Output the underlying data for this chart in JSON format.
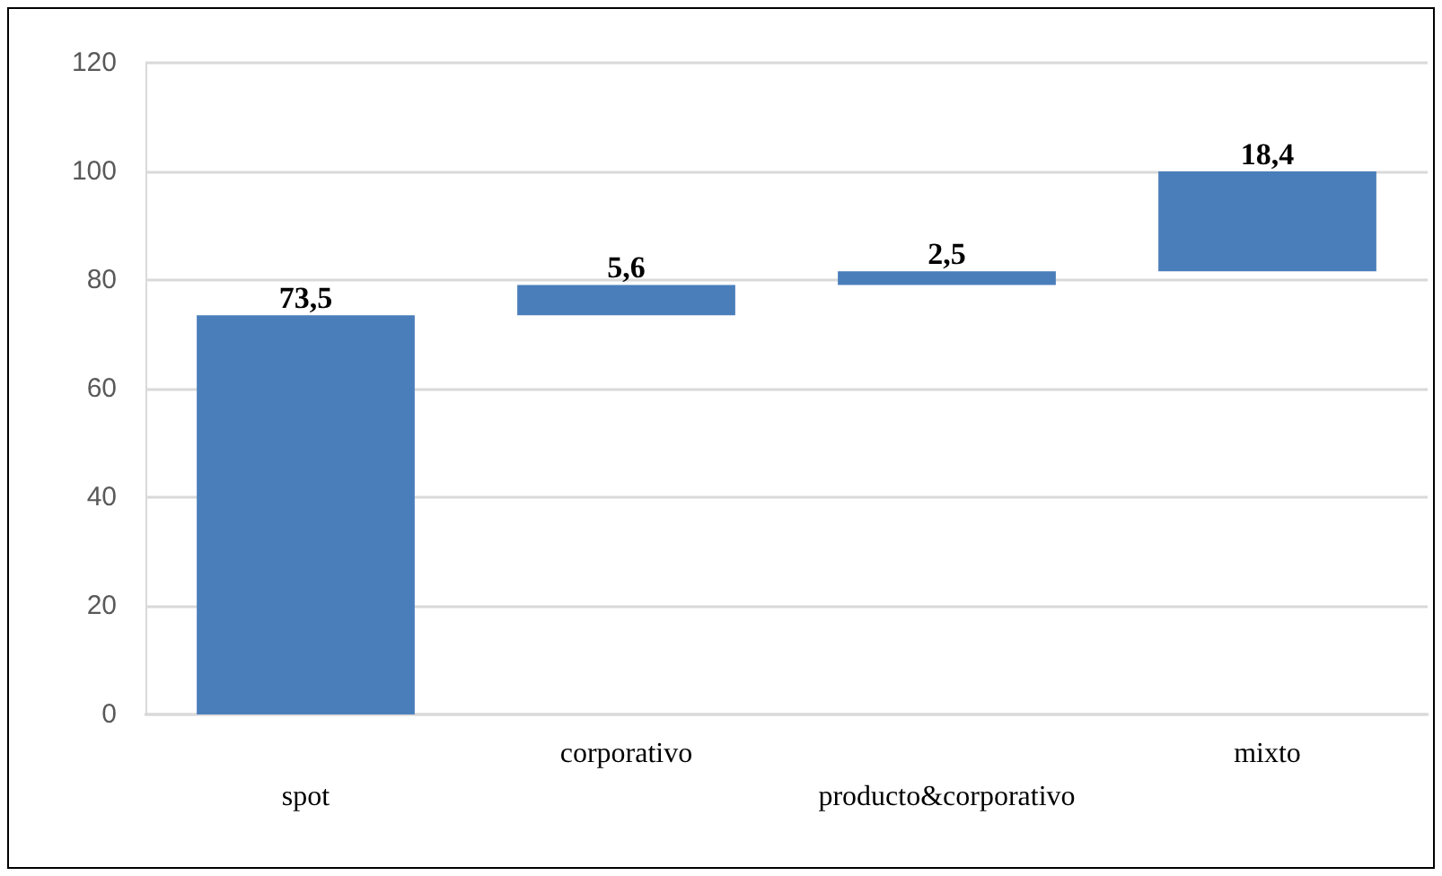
{
  "chart_data": {
    "type": "bar",
    "categories": [
      "spot",
      "corporativo",
      "producto&corporativo",
      "mixto"
    ],
    "values": [
      73.5,
      5.6,
      2.5,
      18.4
    ],
    "base": [
      0,
      73.5,
      79.1,
      81.6
    ],
    "value_labels": [
      "73,5",
      "5,6",
      "2,5",
      "18,4"
    ],
    "color": "#4a7ebb",
    "ylim": [
      0,
      120
    ],
    "yticks": [
      0,
      20,
      40,
      60,
      80,
      100,
      120
    ],
    "grid": "y"
  }
}
